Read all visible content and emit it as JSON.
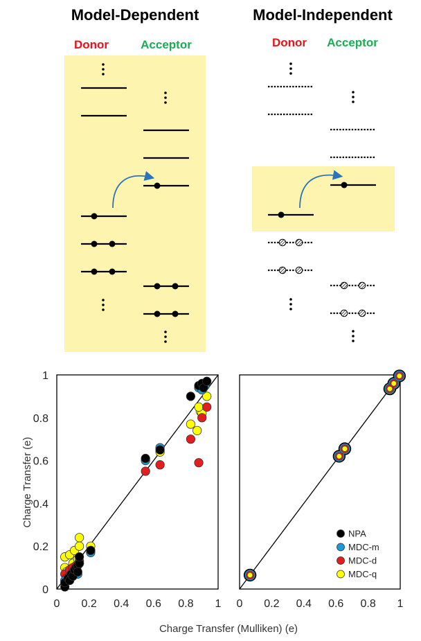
{
  "colors": {
    "highlight": "#fdf4b0",
    "donor": "#e8131a",
    "acceptor": "#18ae52",
    "arrow": "#2a74b8",
    "NPA": "#000000",
    "MDC-m": "#1e9ad6",
    "MDC-d": "#e41e1e",
    "MDC-q": "#ffff00"
  },
  "diagrams": {
    "left": {
      "title": "Model-Dependent",
      "donor_label": "Donor",
      "acceptor_label": "Acceptor"
    },
    "right": {
      "title": "Model-Independent",
      "donor_label": "Donor",
      "acceptor_label": "Acceptor"
    }
  },
  "xlabel": "Charge Transfer (Mulliken) (e)",
  "chart_data": [
    {
      "type": "scatter",
      "name": "model-dependent",
      "xlim": [
        0,
        1
      ],
      "ylim": [
        0,
        1
      ],
      "xticks": [
        "0",
        "0.2",
        "0.4",
        "0.6",
        "0.8",
        "1"
      ],
      "yticks": [
        "0",
        "0.2",
        "0.4",
        "0.6",
        "0.8",
        "1"
      ],
      "ylabel": "Charge Transfer (e)",
      "xlabel": "Charge Transfer (Mulliken) (e)",
      "diagonal": true,
      "series": [
        {
          "name": "MDC-q",
          "x": [
            0.05,
            0.08,
            0.11,
            0.14,
            0.14,
            0.05,
            0.1,
            0.13,
            0.06,
            0.21,
            0.64,
            0.83,
            0.87,
            0.89,
            0.9,
            0.93,
            0.88
          ],
          "y": [
            0.15,
            0.16,
            0.18,
            0.24,
            0.2,
            0.1,
            0.12,
            0.14,
            0.08,
            0.2,
            0.64,
            0.77,
            0.74,
            0.83,
            0.82,
            0.9,
            0.85
          ]
        },
        {
          "name": "MDC-d",
          "x": [
            0.05,
            0.08,
            0.1,
            0.12,
            0.14,
            0.21,
            0.55,
            0.64,
            0.83,
            0.88,
            0.9,
            0.93,
            0.06,
            0.11
          ],
          "y": [
            0.07,
            0.09,
            0.1,
            0.11,
            0.13,
            0.18,
            0.55,
            0.58,
            0.7,
            0.59,
            0.8,
            0.85,
            0.05,
            0.08
          ]
        },
        {
          "name": "MDC-m",
          "x": [
            0.05,
            0.08,
            0.1,
            0.13,
            0.14,
            0.21,
            0.55,
            0.64,
            0.88,
            0.9,
            0.92
          ],
          "y": [
            0.04,
            0.06,
            0.08,
            0.07,
            0.12,
            0.17,
            0.6,
            0.66,
            0.94,
            0.93,
            0.95
          ]
        },
        {
          "name": "NPA",
          "x": [
            0.05,
            0.05,
            0.07,
            0.08,
            0.09,
            0.1,
            0.11,
            0.12,
            0.13,
            0.13,
            0.14,
            0.14,
            0.21,
            0.55,
            0.64,
            0.83,
            0.88,
            0.9,
            0.91,
            0.93
          ],
          "y": [
            0.01,
            0.03,
            0.05,
            0.04,
            0.07,
            0.06,
            0.09,
            0.1,
            0.11,
            0.08,
            0.12,
            0.15,
            0.18,
            0.61,
            0.65,
            0.9,
            0.95,
            0.96,
            0.94,
            0.97
          ]
        }
      ]
    },
    {
      "type": "scatter",
      "name": "model-independent",
      "xlim": [
        0,
        1
      ],
      "ylim": [
        0,
        1
      ],
      "xticks": [
        "0",
        "0.2",
        "0.4",
        "0.6",
        "0.8",
        "1"
      ],
      "diagonal": true,
      "series": [
        {
          "name": "NPA",
          "x": [
            0.065,
            0.62,
            0.655,
            0.935,
            0.96,
            0.995
          ],
          "y": [
            0.065,
            0.62,
            0.655,
            0.935,
            0.96,
            0.995
          ]
        },
        {
          "name": "MDC-m",
          "x": [
            0.065,
            0.62,
            0.655,
            0.935,
            0.96,
            0.995
          ],
          "y": [
            0.065,
            0.62,
            0.655,
            0.935,
            0.96,
            0.995
          ]
        },
        {
          "name": "MDC-d",
          "x": [
            0.065,
            0.62,
            0.655,
            0.935,
            0.96,
            0.995
          ],
          "y": [
            0.065,
            0.62,
            0.655,
            0.935,
            0.96,
            0.995
          ]
        },
        {
          "name": "MDC-q",
          "x": [
            0.065,
            0.62,
            0.655,
            0.935,
            0.96,
            0.995
          ],
          "y": [
            0.065,
            0.62,
            0.655,
            0.935,
            0.96,
            0.995
          ]
        }
      ],
      "legend": {
        "position": "bottom-right",
        "entries": [
          "NPA",
          "MDC-m",
          "MDC-d",
          "MDC-q"
        ]
      }
    }
  ]
}
